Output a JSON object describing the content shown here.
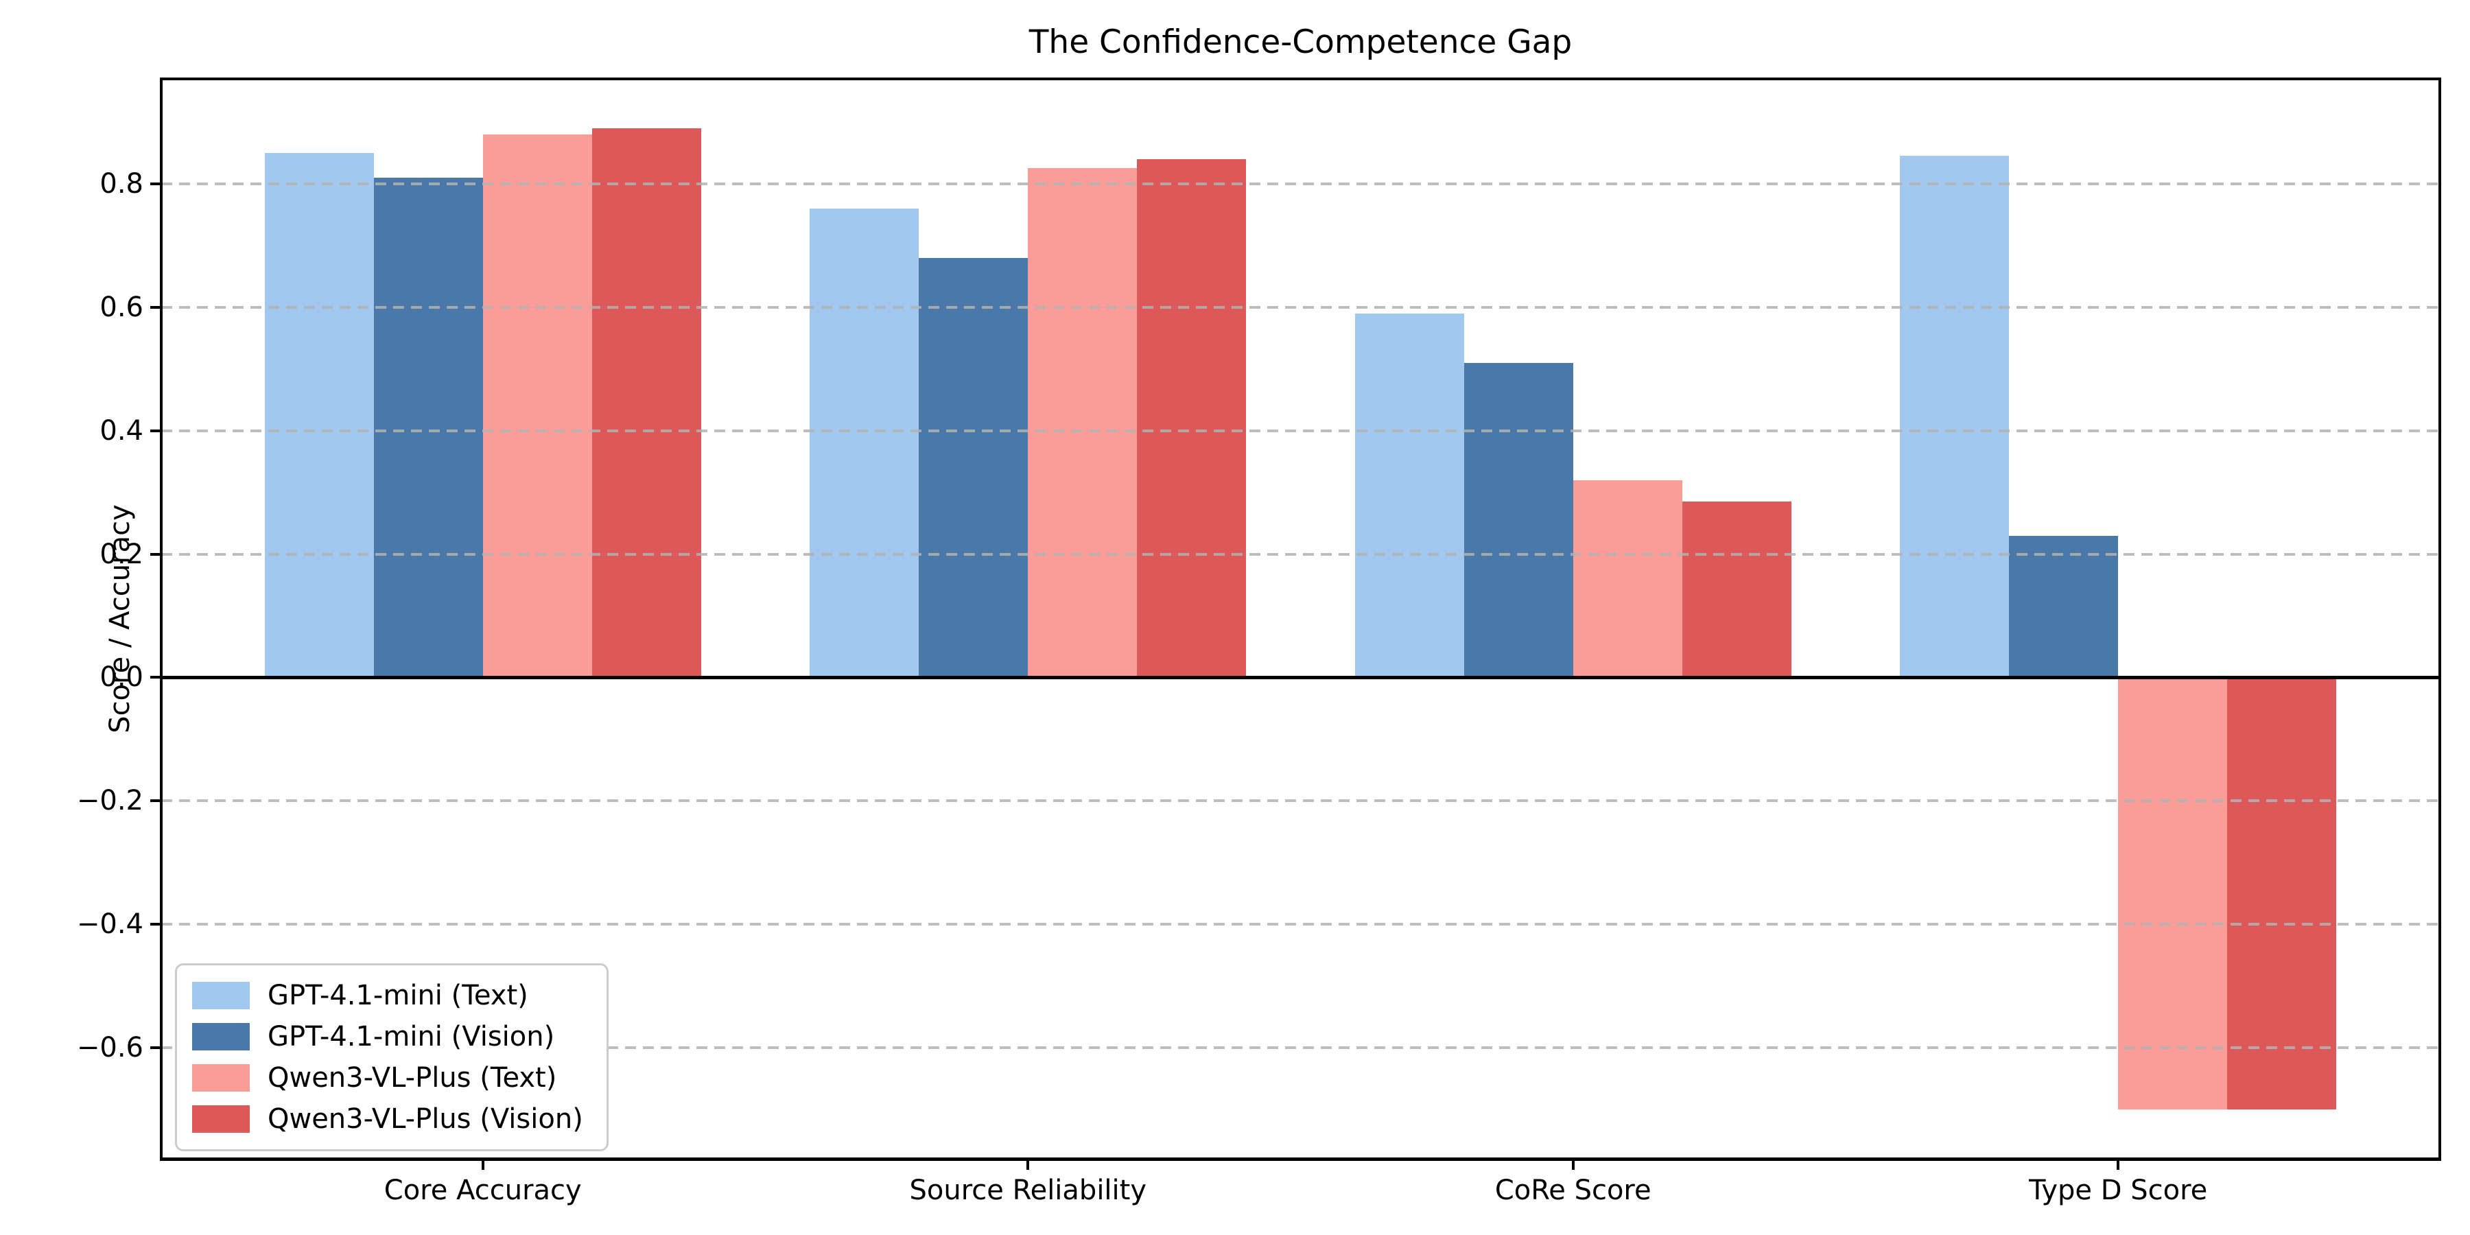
{
  "title": "The Confidence-Competence Gap",
  "y_axis_label": "Score / Accuracy",
  "chart_data": {
    "type": "bar",
    "title": "The Confidence-Competence Gap",
    "xlabel": "",
    "ylabel": "Score / Accuracy",
    "categories": [
      "Core Accuracy",
      "Source Reliability",
      "CoRe Score",
      "Type D Score"
    ],
    "series": [
      {
        "name": "GPT-4.1-mini (Text)",
        "color": "#a2c8ef",
        "values": [
          0.85,
          0.76,
          0.59,
          0.845
        ]
      },
      {
        "name": "GPT-4.1-mini (Vision)",
        "color": "#4a79a9",
        "values": [
          0.81,
          0.68,
          0.51,
          0.23
        ]
      },
      {
        "name": "Qwen3-VL-Plus (Text)",
        "color": "#fa9d99",
        "values": [
          0.88,
          0.825,
          0.32,
          -0.7
        ]
      },
      {
        "name": "Qwen3-VL-Plus (Vision)",
        "color": "#dd5858",
        "values": [
          0.89,
          0.84,
          0.285,
          -0.7
        ]
      }
    ],
    "ylim": [
      -0.78,
      0.97
    ],
    "yticks": [
      0.8,
      0.6,
      0.4,
      0.2,
      0.0,
      -0.2,
      -0.4,
      -0.6
    ],
    "ytick_labels": [
      "0.8",
      "0.6",
      "0.4",
      "0.2",
      "0.0",
      "−0.2",
      "−0.4",
      "−0.6"
    ],
    "grid": "horizontal dashed, drawn above bars",
    "grid_color": "#b2b2b2",
    "zero_line": true,
    "zero_line_color": "#000000",
    "legend_position": "lower left",
    "background_color": "#ffffff",
    "bar_width_category_units": 0.2
  }
}
